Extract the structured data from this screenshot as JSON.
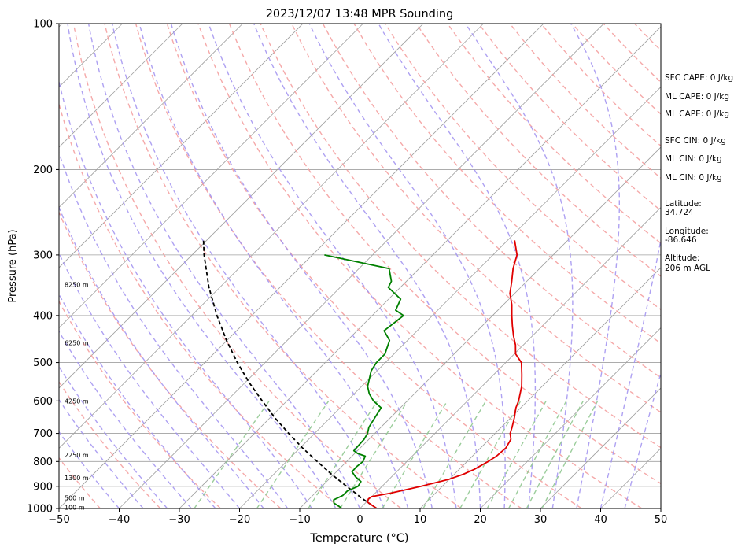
{
  "chart_data": {
    "type": "skew-t log-p sounding",
    "title": "2023/12/07 13:48 MPR Sounding",
    "xlabel": "Temperature (°C)",
    "ylabel": "Pressure (hPa)",
    "xlim": [
      -50,
      50
    ],
    "ylim": [
      1000,
      100
    ],
    "y_scale": "log",
    "x_ticks": [
      "−50",
      "−40",
      "−30",
      "−20",
      "−10",
      "0",
      "10",
      "20",
      "30",
      "40",
      "50"
    ],
    "x_tick_values": [
      -50,
      -40,
      -30,
      -20,
      -10,
      0,
      10,
      20,
      30,
      40,
      50
    ],
    "y_ticks": [
      "1000",
      "900",
      "800",
      "700",
      "600",
      "500",
      "400",
      "300",
      "200",
      "100"
    ],
    "y_tick_values": [
      1000,
      900,
      800,
      700,
      600,
      500,
      400,
      300,
      200,
      100
    ],
    "grid": true,
    "height_labels": [
      {
        "text": "100 m",
        "p": 995
      },
      {
        "text": "500 m",
        "p": 950
      },
      {
        "text": "1300 m",
        "p": 865
      },
      {
        "text": "2250 m",
        "p": 775
      },
      {
        "text": "4250 m",
        "p": 600
      },
      {
        "text": "6250 m",
        "p": 455
      },
      {
        "text": "8250 m",
        "p": 345
      }
    ],
    "temperature": {
      "color": "#e00000",
      "p": [
        1000,
        985,
        970,
        955,
        945,
        930,
        900,
        870,
        850,
        830,
        800,
        780,
        750,
        720,
        700,
        680,
        650,
        620,
        600,
        560,
        530,
        500,
        480,
        460,
        440,
        420,
        400,
        380,
        360,
        340,
        320,
        300,
        280
      ],
      "t": [
        2.8,
        1.5,
        0.2,
        -0.2,
        0.0,
        2.5,
        6.5,
        10.0,
        11.5,
        12.5,
        13.5,
        14.0,
        14.2,
        13.6,
        12.5,
        11.8,
        10.6,
        9.2,
        8.5,
        6.6,
        4.7,
        2.6,
        0.2,
        -1.3,
        -3.2,
        -5.0,
        -6.8,
        -8.6,
        -10.8,
        -12.5,
        -14.4,
        -16.0,
        -18.8
      ]
    },
    "dewpoint": {
      "color": "#008000",
      "p": [
        1000,
        990,
        975,
        960,
        940,
        920,
        900,
        880,
        860,
        840,
        820,
        800,
        780,
        770,
        760,
        740,
        720,
        700,
        680,
        650,
        620,
        600,
        580,
        560,
        520,
        500,
        480,
        450,
        430,
        400,
        390,
        370,
        350,
        340,
        320,
        300
      ],
      "t": [
        -3.0,
        -3.8,
        -5.2,
        -5.8,
        -5.0,
        -5.0,
        -4.0,
        -4.3,
        -6.0,
        -7.4,
        -7.5,
        -7.3,
        -7.8,
        -9.5,
        -10.6,
        -10.7,
        -10.8,
        -11.2,
        -12.0,
        -12.6,
        -13.2,
        -15.6,
        -17.5,
        -19.0,
        -21.0,
        -21.5,
        -21.5,
        -23.0,
        -25.5,
        -24.8,
        -27.0,
        -28.0,
        -32.0,
        -32.5,
        -35.0,
        -48.0
      ]
    },
    "parcel": {
      "color": "#000000",
      "style": "dashed",
      "p": [
        1000,
        975,
        950,
        925,
        900,
        850,
        800,
        750,
        700,
        650,
        600,
        550,
        500,
        450,
        400,
        350,
        300,
        280
      ],
      "t": [
        2.8,
        0.6,
        -1.6,
        -3.7,
        -5.9,
        -10.4,
        -14.9,
        -19.6,
        -24.3,
        -29.2,
        -34.1,
        -39.3,
        -44.6,
        -50.1,
        -55.8,
        -61.8,
        -68.0,
        -70.5
      ]
    },
    "annotations": [
      "SFC CAPE: 0 J/kg",
      "ML CAPE: 0 J/kg",
      "ML CAPE: 0 J/kg",
      "SFC CIN: 0 J/kg",
      "ML CIN: 0 J/kg",
      "ML CIN: 0 J/kg"
    ],
    "location": {
      "lat_label": "Latitude:",
      "lat": "34.724",
      "lon_label": "Longitude:",
      "lon": "-86.646",
      "alt_label": "Altitude:",
      "alt": "206 m AGL"
    },
    "colors": {
      "isotherm": "#a0a0a0",
      "isobar": "#a0a0a0",
      "dry_adiabat": "#f4a0a0",
      "moist_adiabat": "#a090f0",
      "mixing_ratio": "#90c890"
    }
  }
}
